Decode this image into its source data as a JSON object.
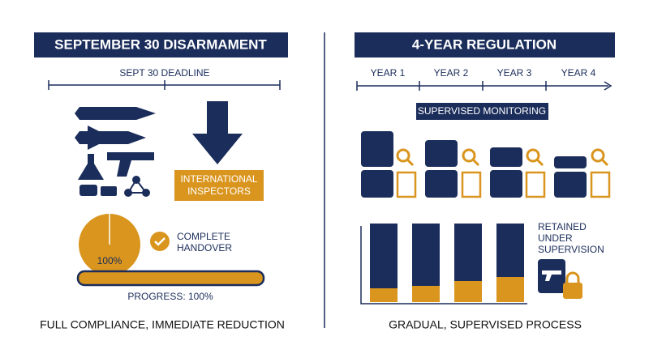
{
  "left": {
    "title": "SEPTEMBER 30 DISARMAMENT",
    "timeline_label": "SEPT 30 DEADLINE",
    "inspectors_label": [
      "INTERNATIONAL",
      "INSPECTORS"
    ],
    "pie_label": "100%",
    "handover_label": [
      "COMPLETE",
      "HANDOVER"
    ],
    "progress_label": "PROGRESS: 100%",
    "caption": "FULL COMPLIANCE, IMMEDIATE REDUCTION"
  },
  "right": {
    "title": "4-YEAR REGULATION",
    "years": [
      "YEAR 1",
      "YEAR 2",
      "YEAR 3",
      "YEAR 4"
    ],
    "monitoring_label": "SUPERVISED MONITORING",
    "retained_label": [
      "RETAINED",
      "UNDER",
      "SUPERVISION"
    ],
    "caption": "GRADUAL, SUPERVISED PROCESS"
  }
}
